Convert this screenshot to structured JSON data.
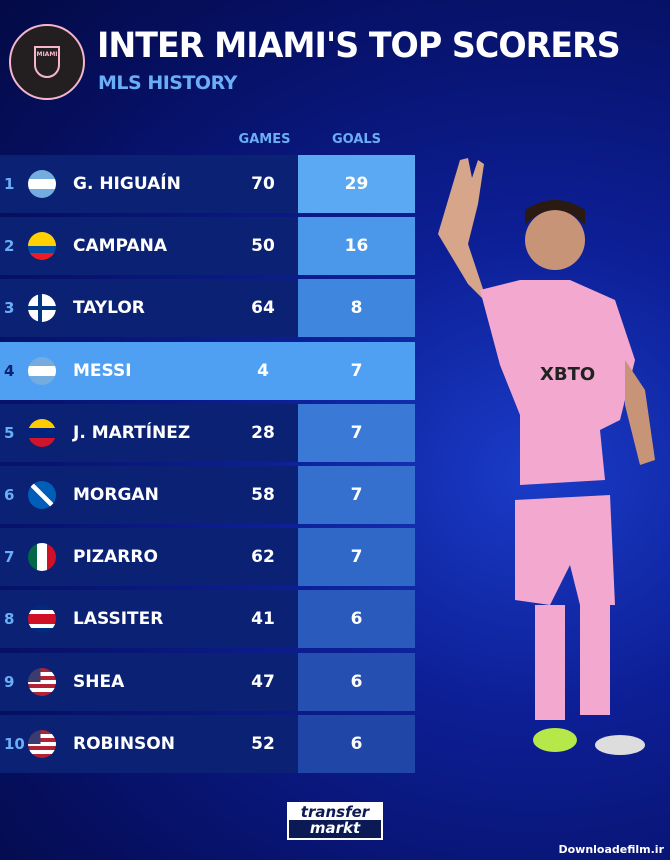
{
  "logo": {
    "text": "MIAMI",
    "ring": "CLUB INTERNACIONAL DE FÚTBOL",
    "year": "MMXX"
  },
  "title": "INTER MIAMI'S TOP SCORERS",
  "subtitle": "MLS HISTORY",
  "columns": {
    "games": "GAMES",
    "goals": "GOALS"
  },
  "rows": [
    {
      "rank": "1",
      "name": "G. HIGUAÍN",
      "games": "70",
      "goals": "29",
      "flag": "argentina",
      "goals_color": "#5aa9f2"
    },
    {
      "rank": "2",
      "name": "CAMPANA",
      "games": "50",
      "goals": "16",
      "flag": "ecuador",
      "goals_color": "#4b98ea"
    },
    {
      "rank": "3",
      "name": "TAYLOR",
      "games": "64",
      "goals": "8",
      "flag": "finland",
      "goals_color": "#3f86df"
    },
    {
      "rank": "4",
      "name": "MESSI",
      "games": "4",
      "goals": "7",
      "flag": "argentina",
      "goals_color": "#4fa0f2",
      "highlight": true
    },
    {
      "rank": "5",
      "name": "J. MARTÍNEZ",
      "games": "28",
      "goals": "7",
      "flag": "venezuela",
      "goals_color": "#3a7ad6"
    },
    {
      "rank": "6",
      "name": "MORGAN",
      "games": "58",
      "goals": "7",
      "flag": "scotland",
      "goals_color": "#3570cf"
    },
    {
      "rank": "7",
      "name": "PIZARRO",
      "games": "62",
      "goals": "7",
      "flag": "mexico",
      "goals_color": "#3068c8"
    },
    {
      "rank": "8",
      "name": "LASSITER",
      "games": "41",
      "goals": "6",
      "flag": "costa-rica",
      "goals_color": "#2a5abc"
    },
    {
      "rank": "9",
      "name": "SHEA",
      "games": "47",
      "goals": "6",
      "flag": "usa",
      "goals_color": "#2550b2"
    },
    {
      "rank": "10",
      "name": "ROBINSON",
      "games": "52",
      "goals": "6",
      "flag": "usa",
      "goals_color": "#2047a8"
    }
  ],
  "footer": {
    "brand_line1": "transfer",
    "brand_line2": "markt"
  },
  "watermark": "Downloadefilm.ir"
}
